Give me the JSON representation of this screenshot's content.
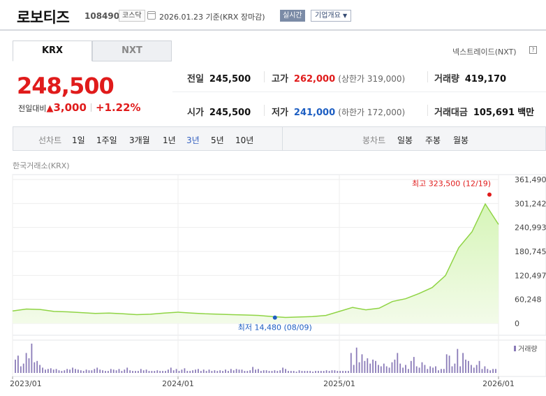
{
  "header": {
    "name": "로보티즈",
    "code": "108490",
    "market_badge": "코스닥",
    "date": "2026.01.23",
    "basis": "기준(KRX 장마감)",
    "realtime_label": "실시간",
    "company_info_label": "기업개요",
    "colors": {
      "rise": "#e01b1b",
      "fall": "#1d5ec2"
    }
  },
  "tabs": {
    "krx": "KRX",
    "nxt": "NXT"
  },
  "nextrade_label": "넥스트레이드(NXT)",
  "help_glyph": "?",
  "price": {
    "current": "248,500",
    "change_label": "전일대비",
    "change_symbol": "▲",
    "change": "3,000",
    "change_pct": "+1.22%"
  },
  "stats": {
    "prev_close": {
      "label": "전일",
      "value": "245,500"
    },
    "open": {
      "label": "시가",
      "value": "245,500"
    },
    "high": {
      "label": "고가",
      "value": "262,000",
      "limit_label": "(상한가",
      "limit": "319,000)"
    },
    "low": {
      "label": "저가",
      "value": "241,000",
      "limit_label": "(하한가",
      "limit": "172,000)"
    },
    "volume": {
      "label": "거래량",
      "value": "419,170"
    },
    "amount": {
      "label": "거래대금",
      "value": "105,691",
      "unit": "백만"
    }
  },
  "period_bar": {
    "line_label": "선차트",
    "periods": [
      "1일",
      "1주일",
      "3개월",
      "1년",
      "3년",
      "5년",
      "10년"
    ],
    "active": "3년",
    "candle_label": "봉차트",
    "candles": [
      "일봉",
      "주봉",
      "월봉"
    ]
  },
  "source_label": "한국거래소(KRX)",
  "chart_data": {
    "type": "area",
    "x_unit": "month",
    "x_start": "2023-01",
    "x_end": "2026-01",
    "x_ticks": [
      "2023/01",
      "2024/01",
      "2025/01",
      "2026/01"
    ],
    "y_ticks": [
      0,
      60248,
      120497,
      180745,
      240993,
      301242,
      361490
    ],
    "y_tick_labels": [
      "0",
      "60,248",
      "120,497",
      "180,745",
      "240,993",
      "301,242",
      "361,490"
    ],
    "ylim": [
      0,
      361490
    ],
    "grid": true,
    "color": "#8fd444",
    "series": [
      {
        "x": [
          "2023-01",
          "2023-02",
          "2023-03",
          "2023-04",
          "2023-05",
          "2023-06",
          "2023-07",
          "2023-08",
          "2023-09",
          "2023-10",
          "2023-11",
          "2023-12",
          "2024-01",
          "2024-02",
          "2024-03",
          "2024-04",
          "2024-05",
          "2024-06",
          "2024-07",
          "2024-08",
          "2024-09",
          "2024-10",
          "2024-11",
          "2024-12",
          "2025-01",
          "2025-02",
          "2025-03",
          "2025-04",
          "2025-05",
          "2025-06",
          "2025-07",
          "2025-08",
          "2025-09",
          "2025-10",
          "2025-11",
          "2025-12",
          "2026-01"
        ],
        "values": [
          31000,
          36000,
          35000,
          30000,
          29000,
          27000,
          25000,
          26000,
          24000,
          22000,
          23000,
          26000,
          28000,
          26000,
          24000,
          23000,
          22000,
          21000,
          20000,
          17000,
          15000,
          16000,
          17000,
          20000,
          30000,
          40000,
          34000,
          38000,
          55000,
          62000,
          75000,
          90000,
          120000,
          190000,
          230000,
          300000,
          248500
        ]
      }
    ],
    "max_point": {
      "x": "2025-12",
      "value": 323500,
      "label": "최고 323,500 (12/19)"
    },
    "min_point": {
      "x": "2024-08",
      "value": 14480,
      "label": "최저 14,480 (08/09)"
    },
    "volume": {
      "label": "거래량",
      "color": "#8a7bb8",
      "values": [
        20,
        26,
        10,
        14,
        30,
        22,
        44,
        16,
        18,
        12,
        8,
        5,
        6,
        7,
        5,
        6,
        4,
        3,
        4,
        6,
        5,
        8,
        6,
        5,
        4,
        3,
        5,
        4,
        4,
        6,
        8,
        5,
        4,
        3,
        3,
        6,
        5,
        4,
        6,
        3,
        5,
        8,
        4,
        3,
        3,
        3,
        6,
        4,
        5,
        3,
        3,
        3,
        4,
        3,
        3,
        3,
        5,
        8,
        4,
        6,
        3,
        5,
        7,
        3,
        3,
        4,
        5,
        6,
        3,
        5,
        3,
        5,
        3,
        4,
        3,
        4,
        3,
        5,
        3,
        6,
        4,
        6,
        5,
        5,
        3,
        3,
        4,
        9,
        5,
        6,
        3,
        4,
        4,
        3,
        3,
        4,
        3,
        4,
        8,
        6,
        3,
        3,
        3,
        2,
        4,
        3,
        3,
        3,
        3,
        2,
        3,
        3,
        3,
        3,
        4,
        3,
        4,
        4,
        3,
        3,
        3,
        3,
        3,
        30,
        12,
        38,
        16,
        28,
        18,
        22,
        14,
        20,
        18,
        12,
        10,
        14,
        10,
        8,
        16,
        20,
        30,
        14,
        8,
        12,
        6,
        18,
        24,
        10,
        8,
        16,
        12,
        6,
        10,
        8,
        10,
        4,
        6,
        6,
        28,
        26,
        10,
        14,
        36,
        10,
        30,
        20,
        18,
        12,
        8,
        12,
        18,
        6,
        10,
        6,
        4,
        6,
        6
      ]
    }
  }
}
